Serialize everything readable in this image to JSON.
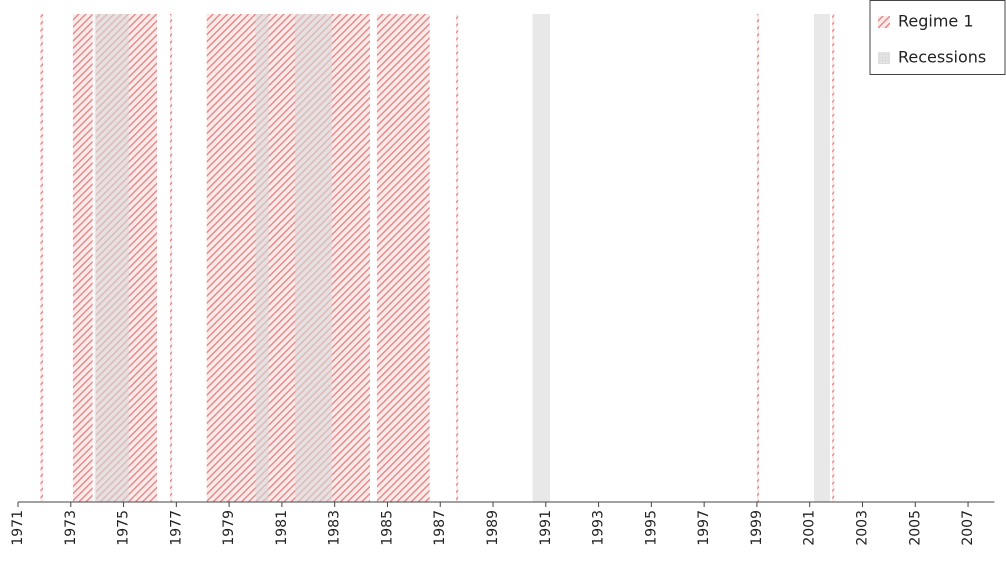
{
  "chart_data": {
    "type": "span",
    "series": [
      {
        "name": "Regime 1",
        "color": "#e08080",
        "pattern": "hatch",
        "intervals": [
          [
            1971.85,
            1971.95
          ],
          [
            1973.08,
            1973.83
          ],
          [
            1973.95,
            1976.27
          ],
          [
            1976.76,
            1976.84
          ],
          [
            1978.15,
            1984.34
          ],
          [
            1984.6,
            1986.6
          ],
          [
            1987.6,
            1987.68
          ],
          [
            1999.0,
            1999.08
          ],
          [
            2001.85,
            2001.93
          ]
        ]
      },
      {
        "name": "Recessions",
        "color": "#d8d8d8",
        "pattern": "solid",
        "intervals": [
          [
            1973.9,
            1975.2
          ],
          [
            1980.0,
            1980.5
          ],
          [
            1981.5,
            1982.9
          ],
          [
            1990.5,
            1991.16
          ],
          [
            2001.16,
            2001.77
          ]
        ]
      }
    ],
    "xlim": [
      1971,
      2008
    ],
    "xticks": [
      1971,
      1973,
      1975,
      1977,
      1979,
      1981,
      1983,
      1985,
      1987,
      1989,
      1991,
      1993,
      1995,
      1997,
      1999,
      2001,
      2003,
      2005,
      2007
    ],
    "legend": "top-right"
  }
}
